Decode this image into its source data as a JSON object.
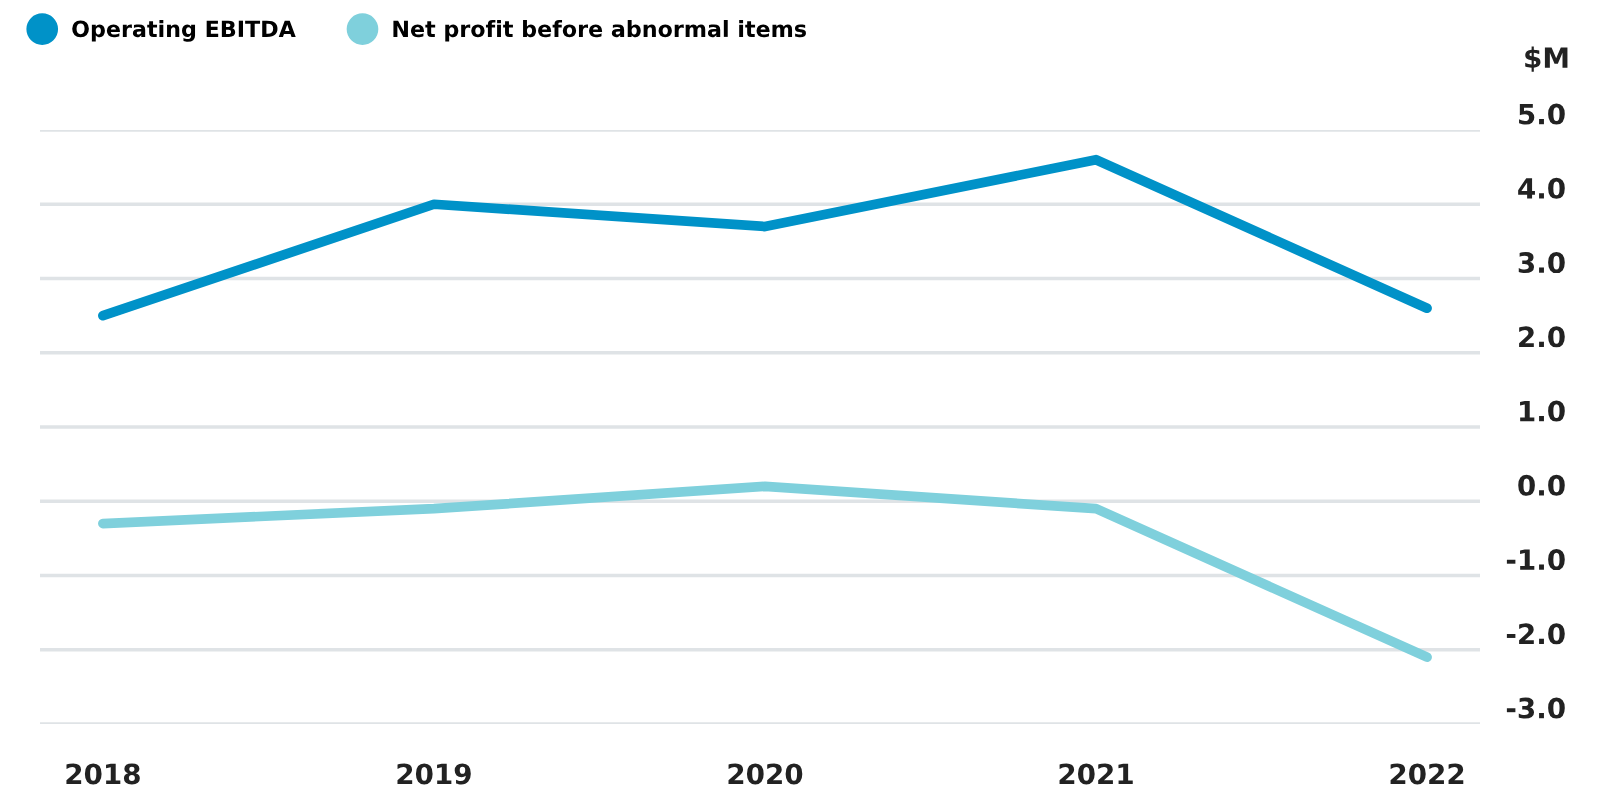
{
  "chart_data": {
    "type": "line",
    "ylabel": "$M",
    "categories": [
      "2018",
      "2019",
      "2020",
      "2021",
      "2022"
    ],
    "series": [
      {
        "name": "Operating EBITDA",
        "color": "#0092c8",
        "values": [
          2.5,
          4.0,
          3.7,
          4.6,
          2.6
        ]
      },
      {
        "name": "Net profit before abnormal items",
        "color": "#7fd0dc",
        "values": [
          -0.3,
          -0.1,
          0.2,
          -0.1,
          -2.1
        ]
      }
    ],
    "ylim": [
      -3,
      5
    ],
    "yticks": [
      {
        "value": 5,
        "label": "5.0"
      },
      {
        "value": 4,
        "label": "4.0"
      },
      {
        "value": 3,
        "label": "3.0"
      },
      {
        "value": 2,
        "label": "2.0"
      },
      {
        "value": 1,
        "label": "1.0"
      },
      {
        "value": 0,
        "label": "0.0"
      },
      {
        "value": -1,
        "label": "-1.0"
      },
      {
        "value": -2,
        "label": "-2.0"
      },
      {
        "value": -3,
        "label": "-3.0"
      }
    ],
    "grid": "y",
    "legend": "top left",
    "marker": "none",
    "line_style": "solid"
  }
}
